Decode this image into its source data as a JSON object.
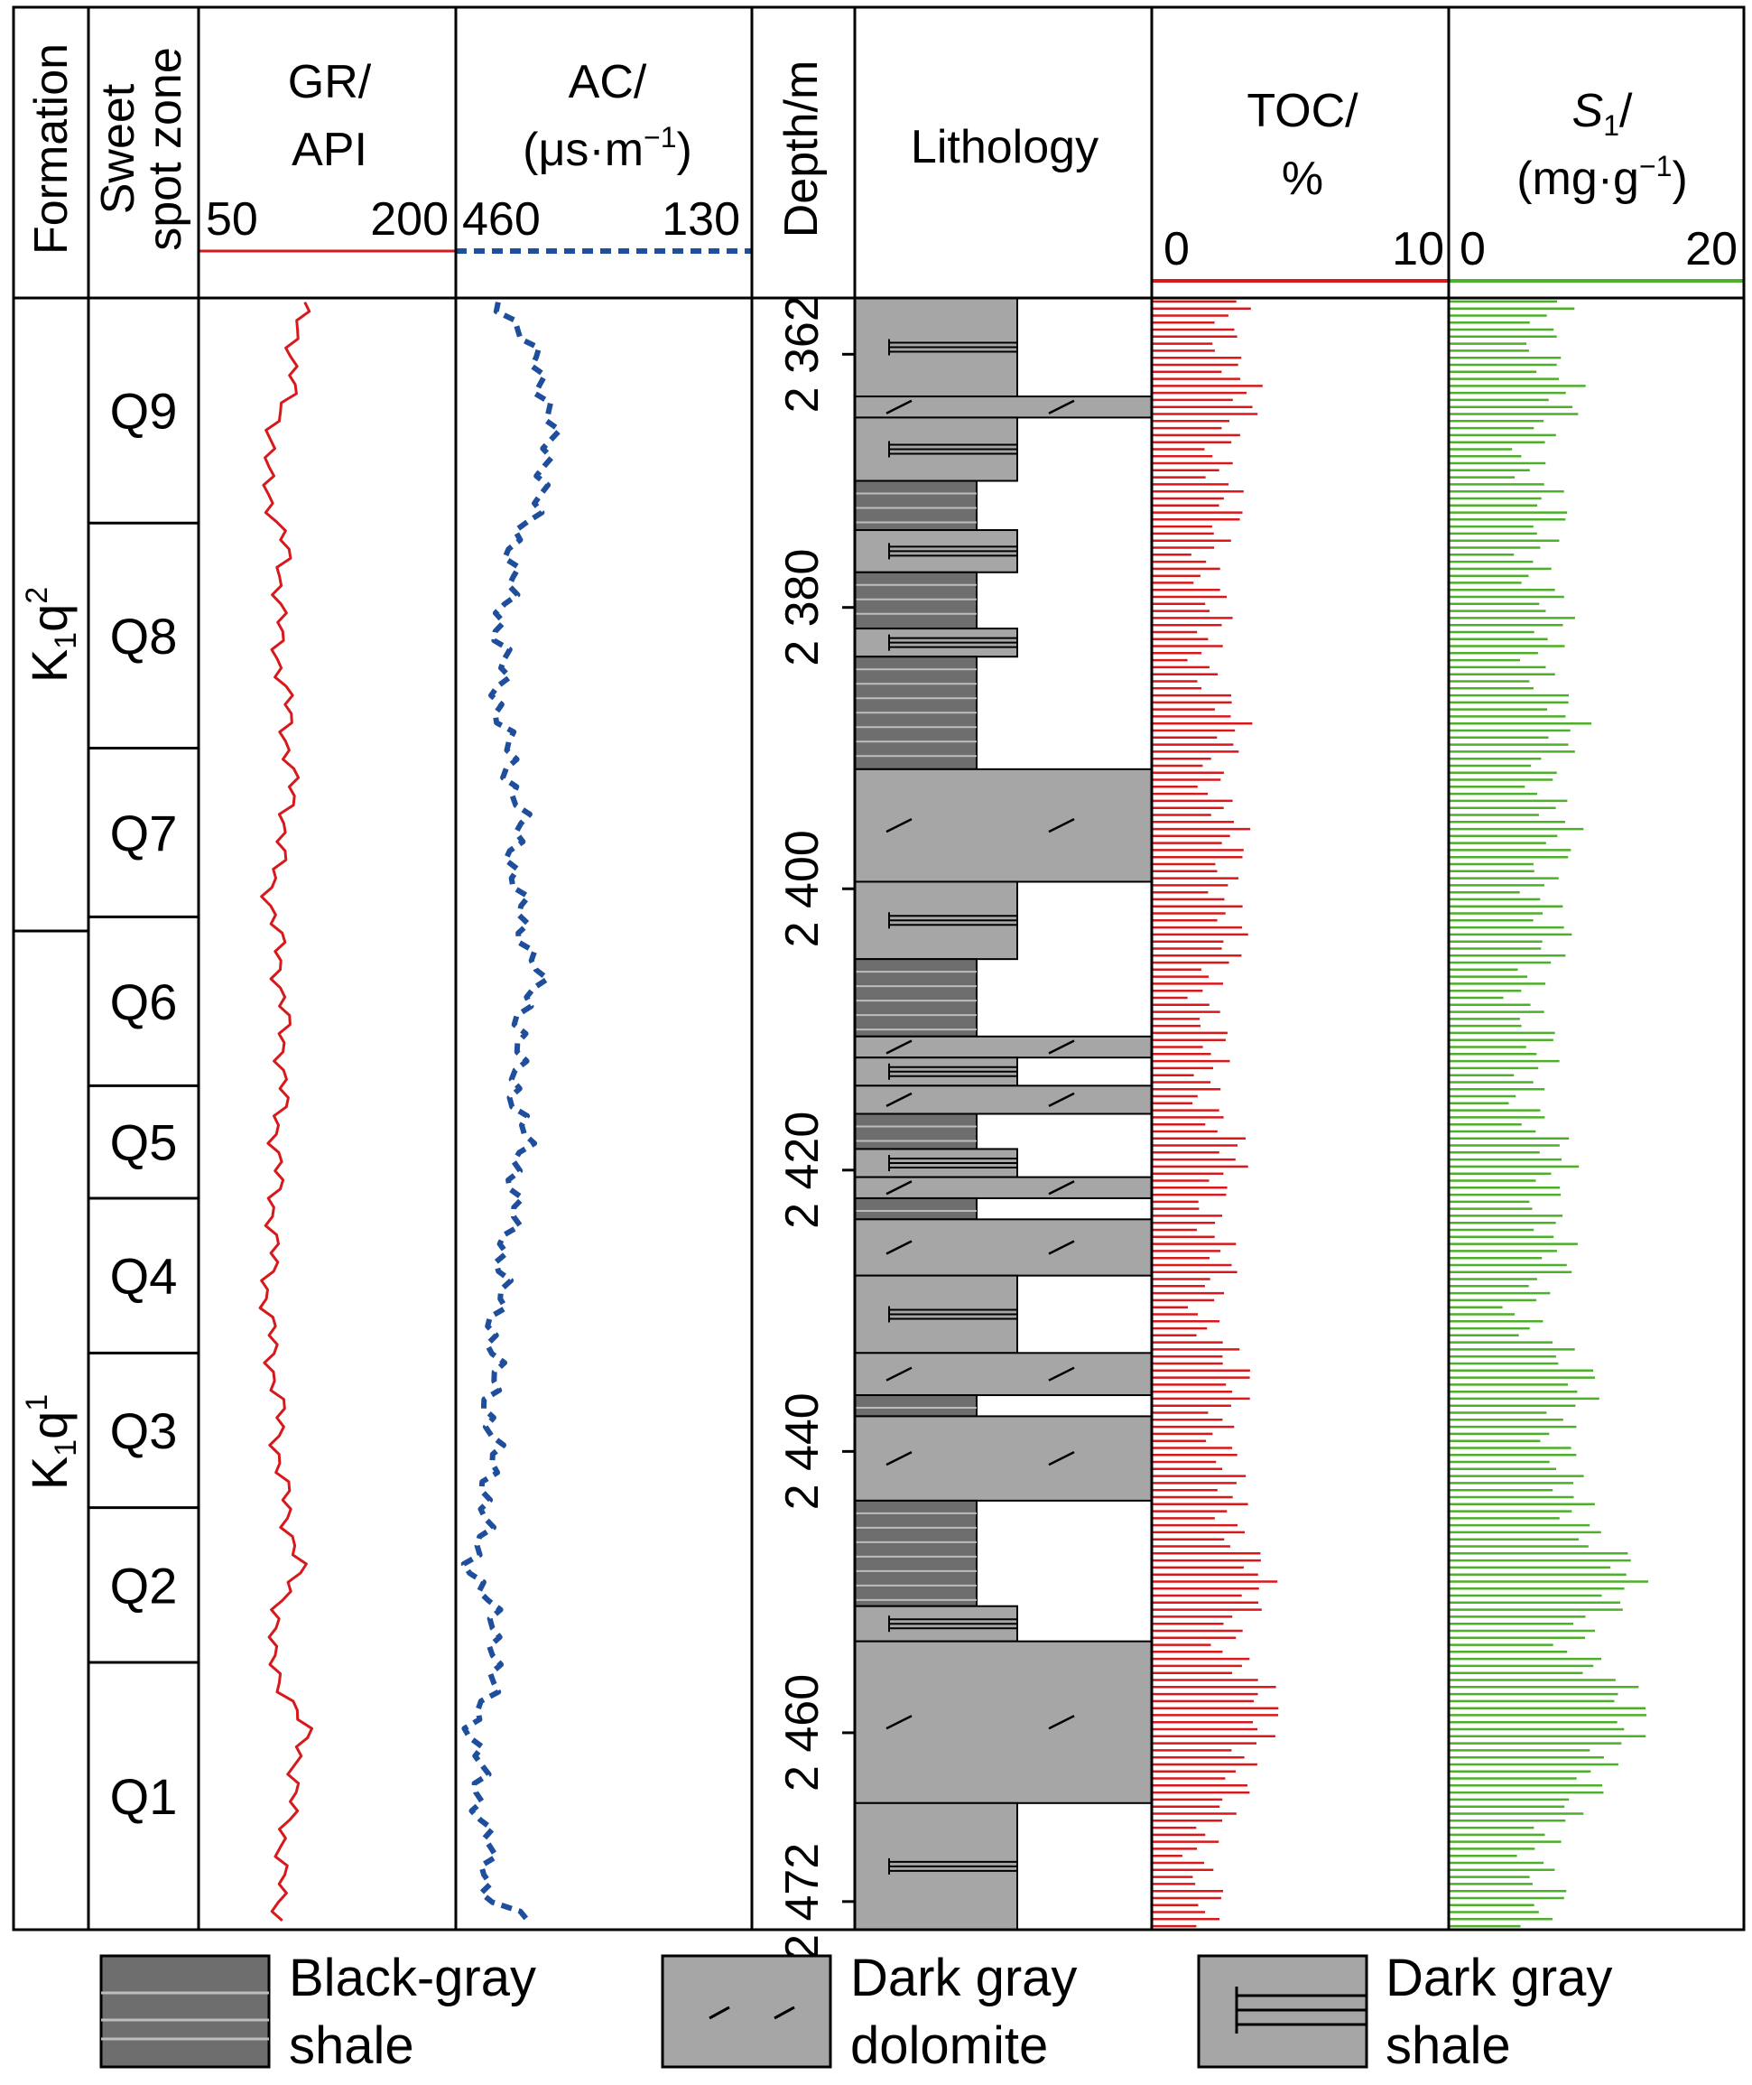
{
  "headers": {
    "formation": "Formation",
    "sweet_spot_line1": "Sweet",
    "sweet_spot_line2": "spot zone",
    "gr_line1": "GR/",
    "gr_line2": "API",
    "gr_min": "50",
    "gr_max": "200",
    "ac_line1": "AC/",
    "ac_line2_pre": "(μs·m",
    "ac_line2_sup": "−1",
    "ac_line2_post": ")",
    "ac_left": "460",
    "ac_right": "130",
    "depth": "Depth/m",
    "lithology": "Lithology",
    "toc_line1": "TOC/",
    "toc_line2": "%",
    "toc_min": "0",
    "toc_max": "10",
    "s1_sym": "S",
    "s1_sub": "1",
    "s1_slash": "/",
    "s1_unit_pre": "(mg·g",
    "s1_unit_sup": "−1",
    "s1_unit_post": ")",
    "s1_min": "0",
    "s1_max": "20"
  },
  "formations": [
    {
      "base": "K",
      "sub": "1",
      "q": "q",
      "sup": "2"
    },
    {
      "base": "K",
      "sub": "1",
      "q": "q",
      "sup": "1"
    }
  ],
  "depth_labels": [
    "2 362",
    "2 380",
    "2 400",
    "2 420",
    "2 440",
    "2 460",
    "2 472"
  ],
  "legend": [
    {
      "line1": "Black-gray",
      "line2": "shale"
    },
    {
      "line1": "Dark gray",
      "line2": "dolomite"
    },
    {
      "line1": "Dark gray",
      "line2": "shale"
    }
  ],
  "colors": {
    "gr": "#d7191c",
    "ac": "#1f4e9c",
    "toc": "#d7191c",
    "s1": "#4daf2a",
    "black_gray_shale": "#6e6e6e",
    "dark_gray": "#a6a6a6"
  },
  "chart_data": {
    "type": "well-log",
    "depth_range_m": [
      2358,
      2474
    ],
    "depth_ticks_m": [
      2362,
      2380,
      2400,
      2420,
      2440,
      2460,
      2472
    ],
    "sweet_spot_zones": [
      {
        "name": "Q9",
        "top": 2358,
        "bottom": 2374
      },
      {
        "name": "Q8",
        "top": 2374,
        "bottom": 2390
      },
      {
        "name": "Q7",
        "top": 2390,
        "bottom": 2402
      },
      {
        "name": "Q6",
        "top": 2402,
        "bottom": 2414
      },
      {
        "name": "Q5",
        "top": 2414,
        "bottom": 2422
      },
      {
        "name": "Q4",
        "top": 2422,
        "bottom": 2433
      },
      {
        "name": "Q3",
        "top": 2433,
        "bottom": 2444
      },
      {
        "name": "Q2",
        "top": 2444,
        "bottom": 2455
      },
      {
        "name": "Q1",
        "top": 2455,
        "bottom": 2474
      }
    ],
    "formation_boundary_m": 2403,
    "lithology": [
      {
        "top": 2358,
        "bottom": 2365,
        "type": "dark_gray_shale"
      },
      {
        "top": 2365,
        "bottom": 2366.5,
        "type": "dark_gray_dolomite"
      },
      {
        "top": 2366.5,
        "bottom": 2371,
        "type": "dark_gray_shale"
      },
      {
        "top": 2371,
        "bottom": 2374.5,
        "type": "black_gray_shale"
      },
      {
        "top": 2374.5,
        "bottom": 2377.5,
        "type": "dark_gray_shale"
      },
      {
        "top": 2377.5,
        "bottom": 2381.5,
        "type": "black_gray_shale"
      },
      {
        "top": 2381.5,
        "bottom": 2383.5,
        "type": "dark_gray_shale"
      },
      {
        "top": 2383.5,
        "bottom": 2391.5,
        "type": "black_gray_shale"
      },
      {
        "top": 2391.5,
        "bottom": 2399.5,
        "type": "dark_gray_dolomite"
      },
      {
        "top": 2399.5,
        "bottom": 2405,
        "type": "dark_gray_shale"
      },
      {
        "top": 2405,
        "bottom": 2410.5,
        "type": "black_gray_shale"
      },
      {
        "top": 2410.5,
        "bottom": 2412,
        "type": "dark_gray_dolomite"
      },
      {
        "top": 2412,
        "bottom": 2414,
        "type": "dark_gray_shale"
      },
      {
        "top": 2414,
        "bottom": 2416,
        "type": "dark_gray_dolomite"
      },
      {
        "top": 2416,
        "bottom": 2418.5,
        "type": "black_gray_shale"
      },
      {
        "top": 2418.5,
        "bottom": 2420.5,
        "type": "dark_gray_shale"
      },
      {
        "top": 2420.5,
        "bottom": 2422,
        "type": "dark_gray_dolomite"
      },
      {
        "top": 2422,
        "bottom": 2423.5,
        "type": "black_gray_shale"
      },
      {
        "top": 2423.5,
        "bottom": 2427.5,
        "type": "dark_gray_dolomite"
      },
      {
        "top": 2427.5,
        "bottom": 2433,
        "type": "dark_gray_shale"
      },
      {
        "top": 2433,
        "bottom": 2436,
        "type": "dark_gray_dolomite"
      },
      {
        "top": 2436,
        "bottom": 2437.5,
        "type": "black_gray_shale"
      },
      {
        "top": 2437.5,
        "bottom": 2443.5,
        "type": "dark_gray_dolomite"
      },
      {
        "top": 2443.5,
        "bottom": 2451,
        "type": "black_gray_shale"
      },
      {
        "top": 2451,
        "bottom": 2453.5,
        "type": "dark_gray_shale"
      },
      {
        "top": 2453.5,
        "bottom": 2465,
        "type": "dark_gray_dolomite"
      },
      {
        "top": 2465,
        "bottom": 2474,
        "type": "dark_gray_shale"
      }
    ],
    "depth_samples_m": [
      2358,
      2364,
      2370,
      2376,
      2382,
      2388,
      2394,
      2400,
      2406,
      2412,
      2418,
      2424,
      2430,
      2436,
      2442,
      2448,
      2454,
      2460,
      2466,
      2472,
      2474
    ],
    "series": [
      {
        "name": "GR",
        "unit": "API",
        "scale": [
          50,
          200
        ],
        "values": [
          110,
          104,
          88,
          100,
          96,
          102,
          104,
          92,
          98,
          100,
          96,
          94,
          90,
          96,
          98,
          108,
          90,
          112,
          102,
          96,
          100
        ]
      },
      {
        "name": "AC",
        "unit": "μs·m−1",
        "scale": [
          460,
          130
        ],
        "values": [
          410,
          360,
          355,
          395,
          410,
          410,
          390,
          395,
          370,
          395,
          385,
          400,
          415,
          420,
          420,
          440,
          410,
          440,
          430,
          420,
          360
        ]
      },
      {
        "name": "TOC",
        "unit": "%",
        "scale": [
          0,
          10
        ],
        "values": [
          2.5,
          3.0,
          2.5,
          2.2,
          1.8,
          2.5,
          2.3,
          2.8,
          2.2,
          1.8,
          2.5,
          2.2,
          2.0,
          2.8,
          2.3,
          3.5,
          2.8,
          4.0,
          2.0,
          1.8,
          1.2
        ]
      },
      {
        "name": "S1",
        "unit": "mg·g−1",
        "scale": [
          0,
          20
        ],
        "values": [
          6.5,
          7.5,
          6.0,
          6.5,
          6.5,
          7.5,
          7.0,
          7.0,
          6.0,
          5.5,
          6.5,
          7.5,
          5.5,
          9.0,
          7.0,
          12.0,
          9.0,
          13.0,
          7.0,
          6.5,
          4.0
        ]
      }
    ]
  }
}
